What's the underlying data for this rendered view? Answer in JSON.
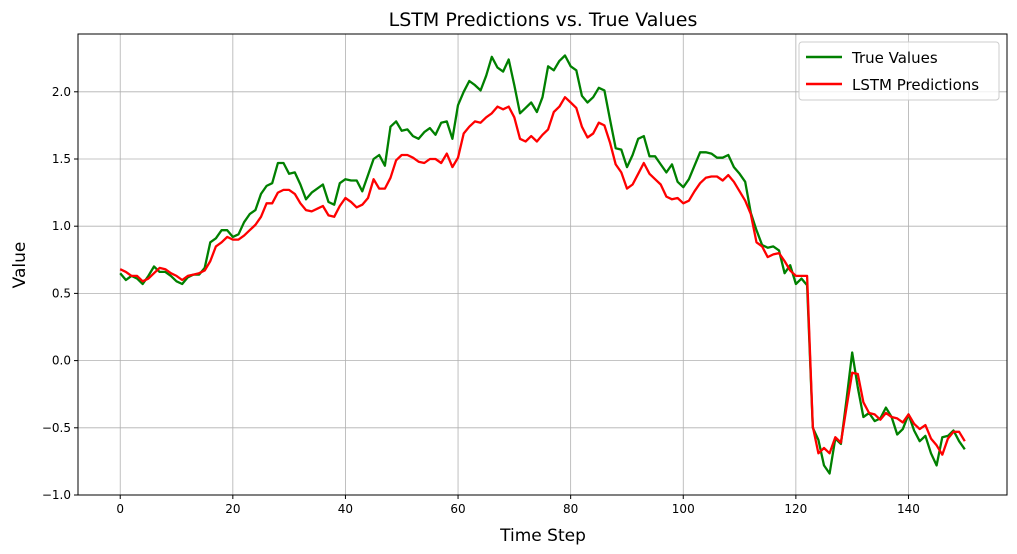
{
  "chart_data": {
    "type": "line",
    "title": "LSTM Predictions vs. True Values",
    "xlabel": "Time Step",
    "ylabel": "Value",
    "xlim": [
      -7.5,
      157.5
    ],
    "ylim": [
      -1.0,
      2.43
    ],
    "xticks": [
      0,
      20,
      40,
      60,
      80,
      100,
      120,
      140
    ],
    "yticks": [
      -1.0,
      -0.5,
      0.0,
      0.5,
      1.0,
      1.5,
      2.0
    ],
    "xtick_labels": [
      "0",
      "20",
      "40",
      "60",
      "80",
      "100",
      "120",
      "140"
    ],
    "ytick_labels": [
      "−1.0",
      "−0.5",
      "0.0",
      "0.5",
      "1.0",
      "1.5",
      "2.0"
    ],
    "grid": true,
    "legend_position": "top-right",
    "series": [
      {
        "name": "True Values",
        "color": "#008000",
        "values": [
          0.65,
          0.6,
          0.63,
          0.61,
          0.57,
          0.63,
          0.7,
          0.66,
          0.66,
          0.63,
          0.59,
          0.57,
          0.62,
          0.64,
          0.64,
          0.69,
          0.88,
          0.91,
          0.97,
          0.97,
          0.92,
          0.94,
          1.03,
          1.09,
          1.12,
          1.24,
          1.3,
          1.32,
          1.47,
          1.47,
          1.39,
          1.4,
          1.31,
          1.2,
          1.25,
          1.28,
          1.31,
          1.18,
          1.16,
          1.32,
          1.35,
          1.34,
          1.34,
          1.26,
          1.38,
          1.5,
          1.53,
          1.45,
          1.74,
          1.78,
          1.71,
          1.72,
          1.67,
          1.65,
          1.7,
          1.73,
          1.68,
          1.77,
          1.78,
          1.65,
          1.9,
          2.0,
          2.08,
          2.05,
          2.01,
          2.12,
          2.26,
          2.18,
          2.15,
          2.24,
          2.05,
          1.84,
          1.88,
          1.92,
          1.85,
          1.96,
          2.19,
          2.16,
          2.23,
          2.27,
          2.19,
          2.16,
          1.97,
          1.92,
          1.96,
          2.03,
          2.01,
          1.79,
          1.58,
          1.57,
          1.44,
          1.53,
          1.65,
          1.67,
          1.52,
          1.52,
          1.46,
          1.4,
          1.46,
          1.33,
          1.29,
          1.35,
          1.45,
          1.55,
          1.55,
          1.54,
          1.51,
          1.51,
          1.53,
          1.44,
          1.39,
          1.33,
          1.1,
          0.97,
          0.86,
          0.84,
          0.85,
          0.82,
          0.65,
          0.71,
          0.57,
          0.61,
          0.56,
          -0.5,
          -0.59,
          -0.78,
          -0.84,
          -0.58,
          -0.62,
          -0.29,
          0.06,
          -0.2,
          -0.42,
          -0.39,
          -0.45,
          -0.43,
          -0.35,
          -0.42,
          -0.55,
          -0.51,
          -0.4,
          -0.52,
          -0.6,
          -0.56,
          -0.69,
          -0.78,
          -0.57,
          -0.56,
          -0.52,
          -0.6,
          -0.66
        ]
      },
      {
        "name": "LSTM Predictions",
        "color": "#ff0000",
        "values": [
          0.68,
          0.66,
          0.63,
          0.63,
          0.59,
          0.61,
          0.65,
          0.69,
          0.68,
          0.65,
          0.63,
          0.6,
          0.63,
          0.64,
          0.65,
          0.67,
          0.74,
          0.85,
          0.88,
          0.92,
          0.9,
          0.9,
          0.93,
          0.97,
          1.01,
          1.07,
          1.17,
          1.17,
          1.25,
          1.27,
          1.27,
          1.24,
          1.17,
          1.12,
          1.11,
          1.13,
          1.15,
          1.08,
          1.07,
          1.15,
          1.21,
          1.18,
          1.14,
          1.16,
          1.21,
          1.35,
          1.28,
          1.28,
          1.36,
          1.49,
          1.53,
          1.53,
          1.51,
          1.48,
          1.47,
          1.5,
          1.5,
          1.47,
          1.54,
          1.44,
          1.51,
          1.69,
          1.74,
          1.78,
          1.77,
          1.81,
          1.84,
          1.89,
          1.87,
          1.89,
          1.81,
          1.65,
          1.63,
          1.67,
          1.63,
          1.68,
          1.72,
          1.85,
          1.89,
          1.96,
          1.92,
          1.88,
          1.74,
          1.66,
          1.69,
          1.77,
          1.75,
          1.62,
          1.46,
          1.4,
          1.28,
          1.31,
          1.39,
          1.47,
          1.39,
          1.35,
          1.31,
          1.22,
          1.2,
          1.21,
          1.17,
          1.19,
          1.26,
          1.32,
          1.36,
          1.37,
          1.37,
          1.34,
          1.38,
          1.33,
          1.26,
          1.19,
          1.09,
          0.88,
          0.85,
          0.77,
          0.79,
          0.8,
          0.74,
          0.67,
          0.63,
          0.63,
          0.63,
          -0.49,
          -0.69,
          -0.65,
          -0.69,
          -0.57,
          -0.61,
          -0.35,
          -0.09,
          -0.1,
          -0.31,
          -0.39,
          -0.4,
          -0.44,
          -0.39,
          -0.42,
          -0.43,
          -0.46,
          -0.4,
          -0.47,
          -0.51,
          -0.48,
          -0.58,
          -0.63,
          -0.7,
          -0.58,
          -0.53,
          -0.53,
          -0.6
        ]
      }
    ]
  }
}
